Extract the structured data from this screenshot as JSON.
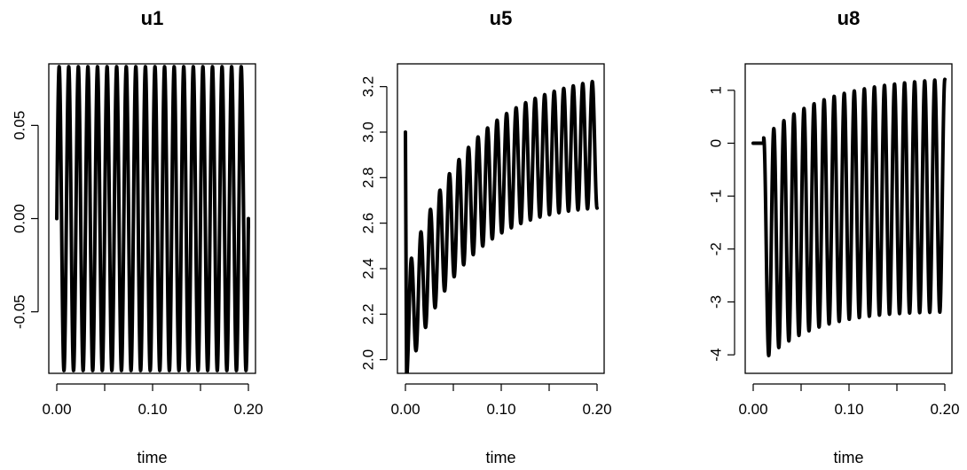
{
  "colors": {
    "line": "#000000",
    "background": "#ffffff"
  },
  "chart_data": [
    {
      "type": "line",
      "title": "u1",
      "xlabel": "time",
      "ylabel": "",
      "xlim": [
        0,
        0.2
      ],
      "ylim": [
        -0.083,
        0.083
      ],
      "xticks": [
        0,
        0.05,
        0.1,
        0.15,
        0.2
      ],
      "xtick_labels": [
        "0.00",
        "",
        "0.10",
        "",
        "0.20"
      ],
      "yticks": [
        -0.05,
        0,
        0.05
      ],
      "ytick_labels": [
        "-0.05",
        "0.00",
        "0.05"
      ],
      "series": [
        {
          "style": "oscillation",
          "x_start": 0,
          "x_end": 0.2,
          "start_value": 0,
          "periods": 20,
          "offset_start": 0,
          "offset_end": 0,
          "amp_start": 0.0815,
          "amp_end": 0.0815
        }
      ]
    },
    {
      "type": "line",
      "title": "u5",
      "xlabel": "time",
      "ylabel": "",
      "xlim": [
        0,
        0.2
      ],
      "ylim": [
        1.94,
        3.3
      ],
      "xticks": [
        0,
        0.05,
        0.1,
        0.15,
        0.2
      ],
      "xtick_labels": [
        "0.00",
        "",
        "0.10",
        "",
        "0.20"
      ],
      "yticks": [
        2.0,
        2.2,
        2.4,
        2.6,
        2.8,
        3.0,
        3.2
      ],
      "ytick_labels": [
        "2.0",
        "2.2",
        "2.4",
        "2.6",
        "2.8",
        "3.0",
        "3.2"
      ],
      "series": [
        {
          "style": "growing-oscillation",
          "x_start": 0,
          "x_end": 0.2,
          "start_value": 3.0,
          "periods": 20,
          "offset_start": 2.15,
          "offset_end": 2.98,
          "amp_start": 0.23,
          "amp_end": 0.28
        }
      ]
    },
    {
      "type": "line",
      "title": "u8",
      "xlabel": "time",
      "ylabel": "",
      "xlim": [
        0,
        0.2
      ],
      "ylim": [
        -4.35,
        1.5
      ],
      "xticks": [
        0,
        0.05,
        0.1,
        0.15,
        0.2
      ],
      "xtick_labels": [
        "0.00",
        "",
        "0.10",
        "",
        "0.20"
      ],
      "yticks": [
        -4,
        -3,
        -2,
        -1,
        0,
        1
      ],
      "ytick_labels": [
        "-4",
        "-3",
        "-2",
        "-1",
        "0",
        "1"
      ],
      "series": [
        {
          "style": "delayed-oscillation",
          "x_start": 0,
          "x_end": 0.2,
          "start_value": 0,
          "flat_until": 0.011,
          "periods": 18,
          "offset_start": -2.0,
          "offset_end": -0.95,
          "amp_start": 2.1,
          "amp_end": 2.2
        }
      ]
    }
  ]
}
